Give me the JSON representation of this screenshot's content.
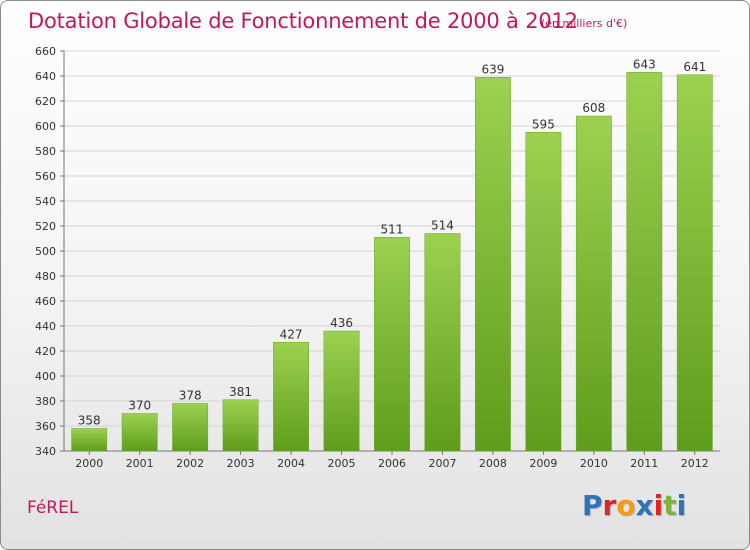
{
  "header": {
    "title": "Dotation Globale de Fonctionnement de 2000 à 2012",
    "subtitle": "(en milliers d'€)"
  },
  "footer": {
    "place": "FéREL",
    "logo": "Proxiti"
  },
  "colors": {
    "title": "#c2185b",
    "bar_top": "#9dd150",
    "bar_bottom": "#5e9d1b",
    "logo_letters": [
      "#2f73b8",
      "#e0242a",
      "#f39c12",
      "#2f73b8",
      "#e0242a",
      "#7cb342",
      "#2f73b8"
    ]
  },
  "chart_data": {
    "type": "bar",
    "categories": [
      "2000",
      "2001",
      "2002",
      "2003",
      "2004",
      "2005",
      "2006",
      "2007",
      "2008",
      "2009",
      "2010",
      "2011",
      "2012"
    ],
    "values": [
      358,
      370,
      378,
      381,
      427,
      436,
      511,
      514,
      639,
      595,
      608,
      643,
      641
    ],
    "ylim": [
      340,
      660
    ],
    "yticks": [
      340,
      360,
      380,
      400,
      420,
      440,
      460,
      480,
      500,
      520,
      540,
      560,
      580,
      600,
      620,
      640,
      660
    ],
    "grid": true,
    "data_labels": true
  }
}
